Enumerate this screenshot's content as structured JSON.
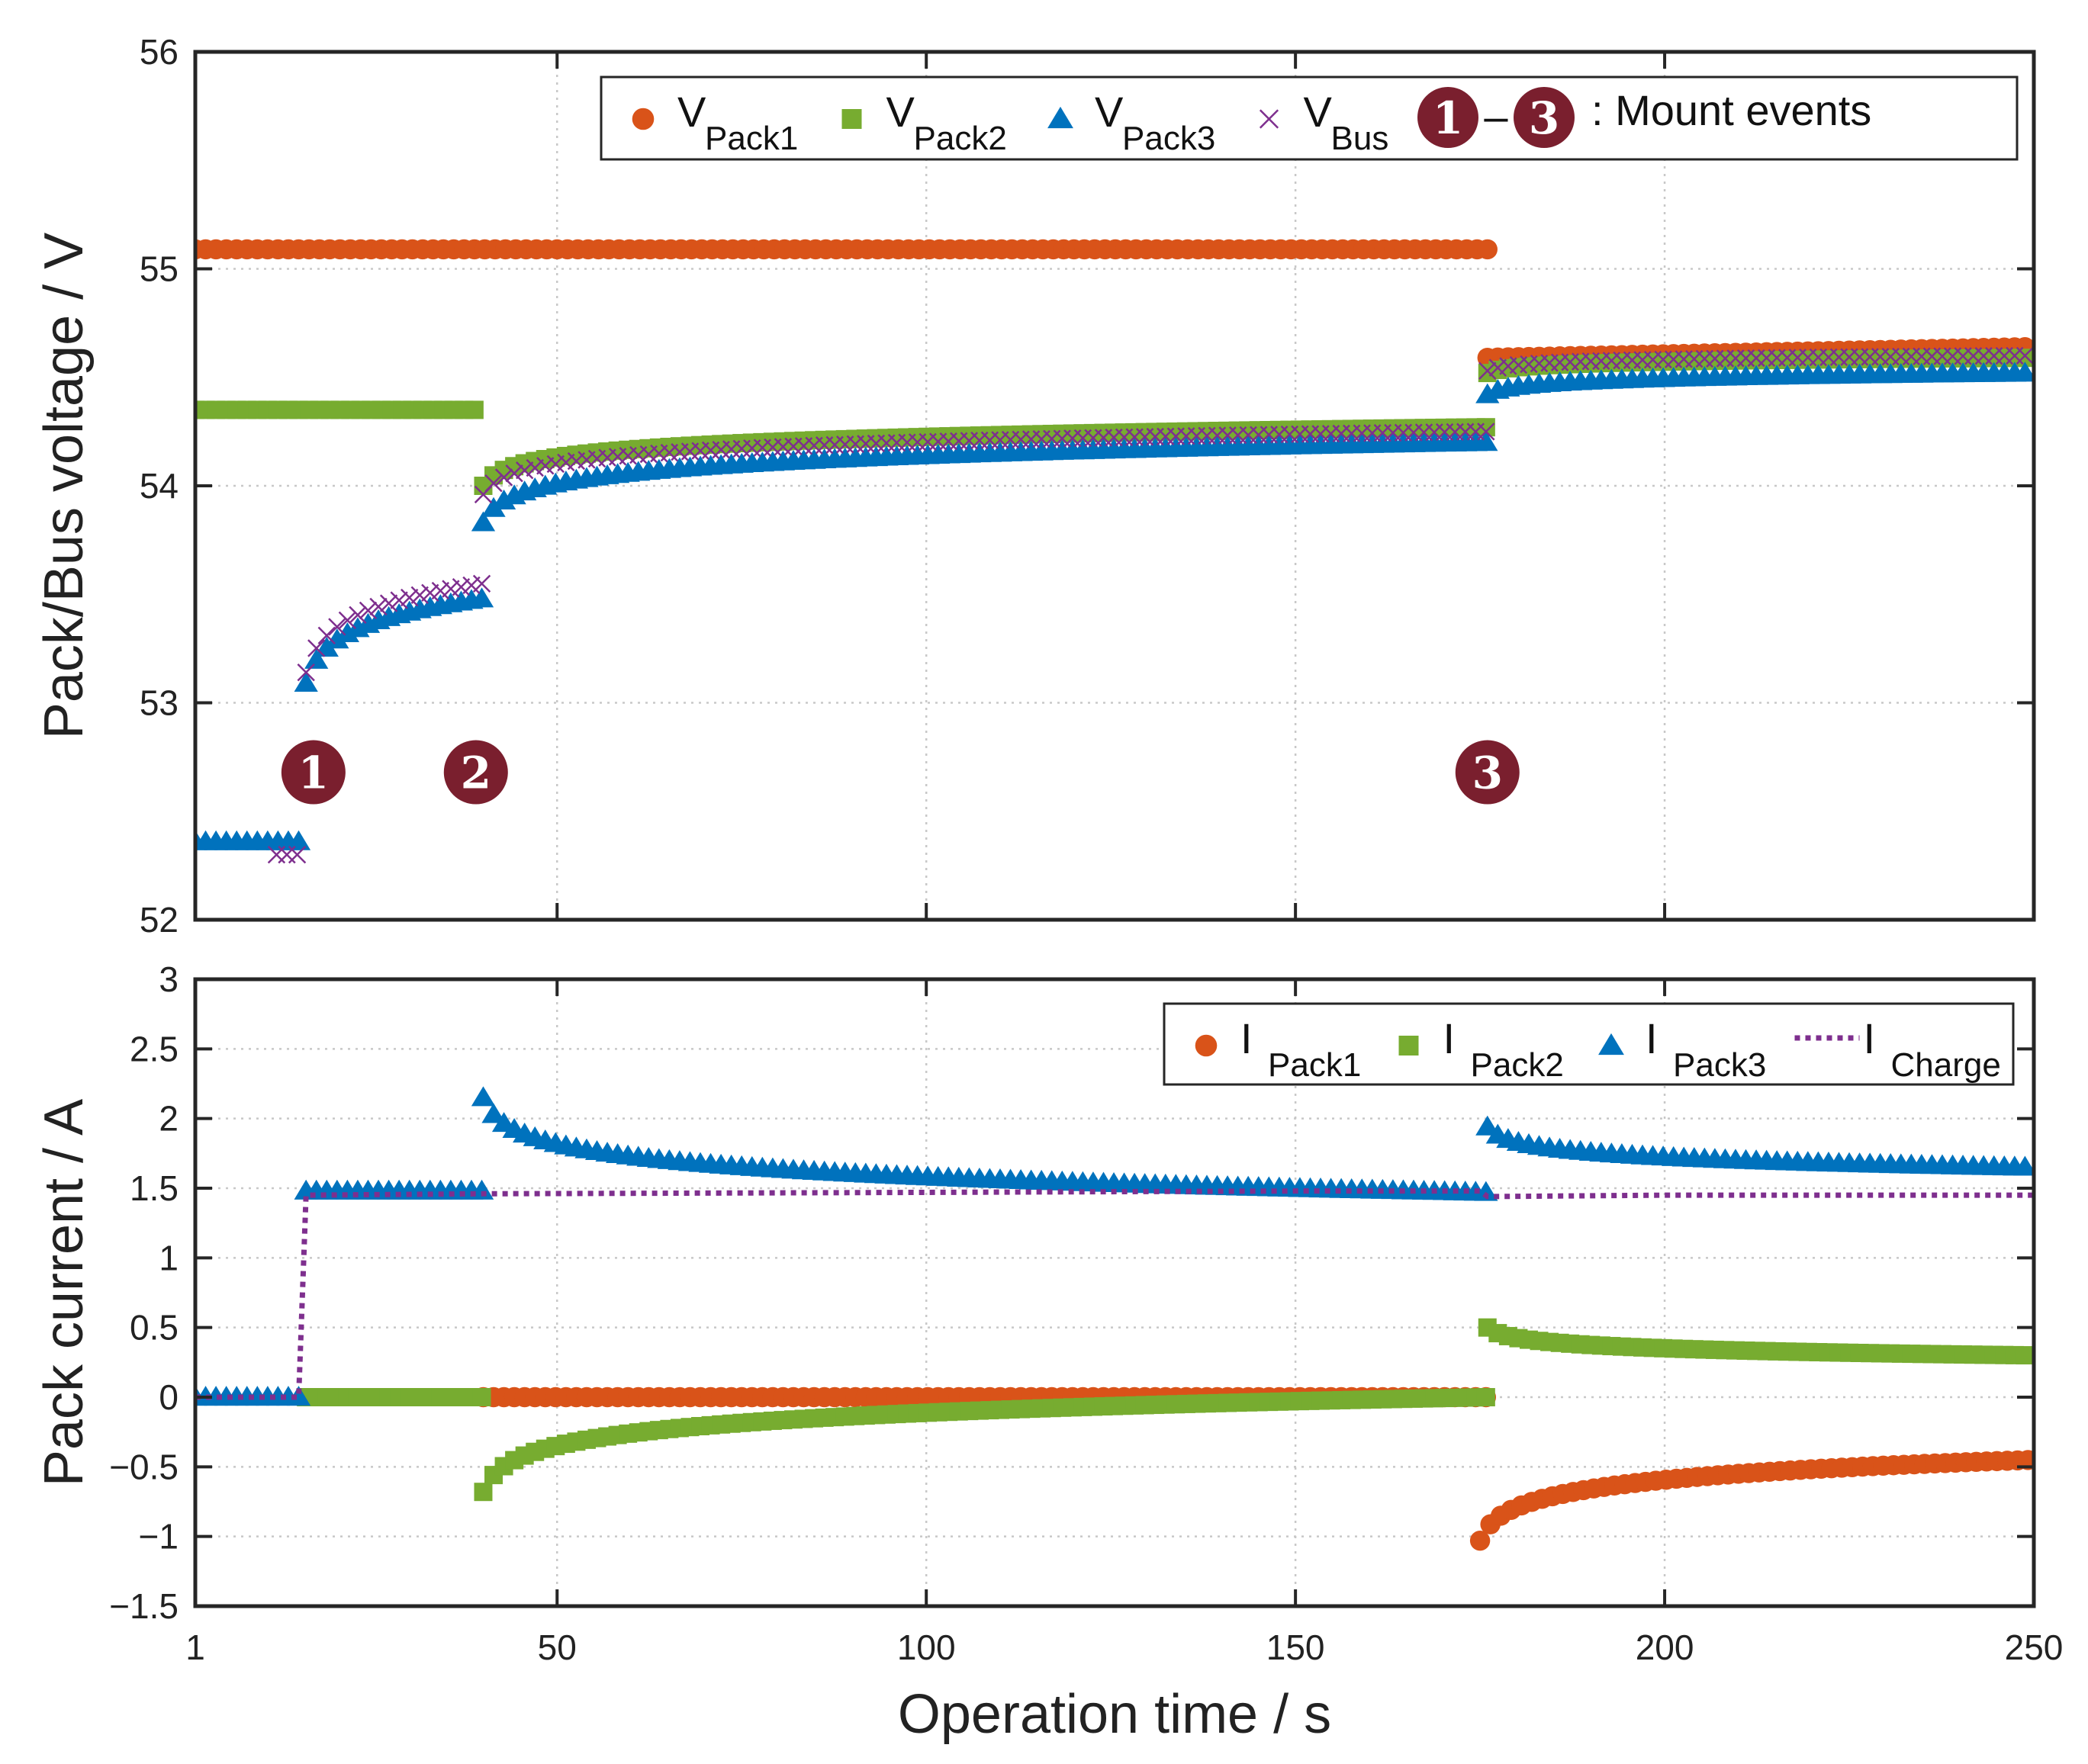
{
  "chart_data": [
    {
      "type": "scatter",
      "panel": "top",
      "ylabel": "Pack/Bus voltage / V",
      "xlim": [
        1,
        250
      ],
      "ylim": [
        52,
        56
      ],
      "x_ticks": [
        1,
        50,
        100,
        150,
        200,
        250
      ],
      "y_ticks": [
        52,
        53,
        54,
        55,
        56
      ],
      "grid": true,
      "legend_position": "top-right",
      "legend_note": ": Mount events",
      "legend_note_events": [
        "1",
        "3"
      ],
      "legend_note_dash": "–",
      "mount_events": [
        {
          "label": "1",
          "x": 17,
          "y": 52.68
        },
        {
          "label": "2",
          "x": 39,
          "y": 52.68
        },
        {
          "label": "3",
          "x": 176,
          "y": 52.68
        }
      ],
      "series": [
        {
          "name": "V",
          "sub": "Pack1",
          "marker": "circle",
          "color": "#D95319",
          "segments": [
            {
              "x0": 1,
              "x1": 176,
              "y0": 55.09,
              "y1": 55.09,
              "curve": "flat"
            },
            {
              "x0": 176,
              "x1": 250,
              "y0": 54.59,
              "y1": 54.64,
              "curve": "linear"
            }
          ]
        },
        {
          "name": "V",
          "sub": "Pack2",
          "marker": "square",
          "color": "#77AC30",
          "segments": [
            {
              "x0": 1,
              "x1": 40,
              "y0": 54.35,
              "y1": 54.35,
              "curve": "flat"
            },
            {
              "x0": 40,
              "x1": 176,
              "y0": 54.0,
              "y1": 54.27,
              "curve": "log"
            },
            {
              "x0": 176,
              "x1": 250,
              "y0": 54.52,
              "y1": 54.59,
              "curve": "log"
            }
          ]
        },
        {
          "name": "V",
          "sub": "Pack3",
          "marker": "triangle",
          "color": "#0072BD",
          "segments": [
            {
              "x0": 1,
              "x1": 16,
              "y0": 52.36,
              "y1": 52.35,
              "curve": "flat"
            },
            {
              "x0": 16,
              "x1": 40,
              "y0": 53.09,
              "y1": 53.48,
              "curve": "log"
            },
            {
              "x0": 40,
              "x1": 176,
              "y0": 53.83,
              "y1": 54.2,
              "curve": "log"
            },
            {
              "x0": 176,
              "x1": 250,
              "y0": 54.42,
              "y1": 54.52,
              "curve": "log"
            }
          ]
        },
        {
          "name": "V",
          "sub": "Bus",
          "marker": "cross",
          "color": "#7E2F8E",
          "segments": [
            {
              "x0": 12,
              "x1": 16,
              "y0": 52.3,
              "y1": 52.3,
              "curve": "flat"
            },
            {
              "x0": 16,
              "x1": 40,
              "y0": 53.14,
              "y1": 53.55,
              "curve": "log"
            },
            {
              "x0": 40,
              "x1": 176,
              "y0": 53.96,
              "y1": 54.25,
              "curve": "log"
            },
            {
              "x0": 176,
              "x1": 250,
              "y0": 54.53,
              "y1": 54.6,
              "curve": "log"
            }
          ]
        }
      ]
    },
    {
      "type": "scatter",
      "panel": "bottom",
      "xlabel": "Operation time / s",
      "ylabel": "Pack current / A",
      "xlim": [
        1,
        250
      ],
      "ylim": [
        -1.5,
        3
      ],
      "x_ticks": [
        1,
        50,
        100,
        150,
        200,
        250
      ],
      "y_ticks": [
        -1.5,
        -1,
        -0.5,
        0,
        0.5,
        1,
        1.5,
        2,
        2.5,
        3
      ],
      "y_tick_labels": [
        "−1.5",
        "−1",
        "−0.5",
        "0",
        "0.5",
        "1",
        "1.5",
        "2",
        "2.5",
        "3"
      ],
      "grid": true,
      "legend_position": "top-right",
      "series": [
        {
          "name": "I",
          "sub": "Pack1",
          "marker": "circle",
          "color": "#D95319",
          "segments": [
            {
              "x0": 40,
              "x1": 176,
              "y0": 0.0,
              "y1": 0.0,
              "curve": "flat"
            },
            {
              "x0": 175,
              "x1": 250,
              "y0": -1.03,
              "y1": -0.45,
              "curve": "log"
            }
          ]
        },
        {
          "name": "I",
          "sub": "Pack2",
          "marker": "square",
          "color": "#77AC30",
          "segments": [
            {
              "x0": 16,
              "x1": 40,
              "y0": 0.0,
              "y1": 0.0,
              "curve": "flat"
            },
            {
              "x0": 40,
              "x1": 176,
              "y0": -0.68,
              "y1": 0.0,
              "curve": "log"
            },
            {
              "x0": 176,
              "x1": 250,
              "y0": 0.5,
              "y1": 0.3,
              "curve": "log"
            }
          ]
        },
        {
          "name": "I",
          "sub": "Pack3",
          "marker": "triangle",
          "color": "#0072BD",
          "segments": [
            {
              "x0": 1,
              "x1": 16,
              "y0": 0.0,
              "y1": 0.0,
              "curve": "flat"
            },
            {
              "x0": 16,
              "x1": 40,
              "y0": 1.48,
              "y1": 1.48,
              "curve": "flat"
            },
            {
              "x0": 40,
              "x1": 176,
              "y0": 2.15,
              "y1": 1.47,
              "curve": "log"
            },
            {
              "x0": 176,
              "x1": 250,
              "y0": 1.94,
              "y1": 1.65,
              "curve": "log"
            }
          ]
        },
        {
          "name": "I",
          "sub": "Charge",
          "marker": "dotted-line",
          "color": "#7E2F8E",
          "points": [
            [
              1,
              0
            ],
            [
              15,
              0
            ],
            [
              16,
              1.45
            ],
            [
              40,
              1.46
            ],
            [
              100,
              1.47
            ],
            [
              150,
              1.48
            ],
            [
              175,
              1.48
            ],
            [
              176,
              1.44
            ],
            [
              200,
              1.45
            ],
            [
              250,
              1.45
            ]
          ]
        }
      ]
    }
  ]
}
